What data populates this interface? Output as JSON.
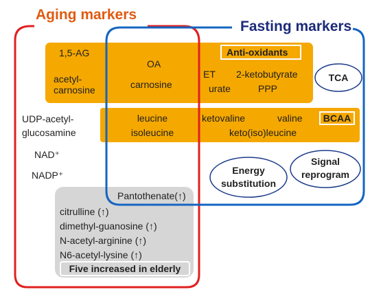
{
  "colors": {
    "aging": "#e02020",
    "aging_title": "#e05a10",
    "fasting": "#1565c0",
    "fasting_title": "#1a2a7a",
    "orange": "#f5a800",
    "gray": "#d6d6d6",
    "oval_border": "#1a3a8a"
  },
  "aging": {
    "title": "Aging markers"
  },
  "fasting": {
    "title": "Fasting markers"
  },
  "antioxidant_band": {
    "label": "Anti-oxidants",
    "left_items": [
      "1,5-AG",
      "acetyl-",
      "carnosine"
    ],
    "mid_items": [
      "OA",
      "carnosine"
    ],
    "right_items": [
      "ET",
      "2-ketobutyrate",
      "urate",
      "PPP"
    ]
  },
  "tca_label": "TCA",
  "bcaa_band": {
    "label": "BCAA",
    "left_items": [
      "leucine",
      "isoleucine"
    ],
    "right_items": [
      "ketovaline",
      "valine",
      "keto(iso)leucine"
    ]
  },
  "aging_only": [
    "UDP-acetyl-",
    "glucosamine",
    "NAD⁺",
    "NADP⁺"
  ],
  "fasting_only": {
    "energy": [
      "Energy",
      "substitution"
    ],
    "signal": [
      "Signal",
      "reprogram"
    ]
  },
  "elderly_box": {
    "items": [
      "Pantothenate(↑)",
      "citrulline (↑)",
      "dimethyl-guanosine (↑)",
      "N-acetyl-arginine (↑)",
      "N6-acetyl-lysine (↑)"
    ],
    "label": "Five increased in elderly"
  }
}
